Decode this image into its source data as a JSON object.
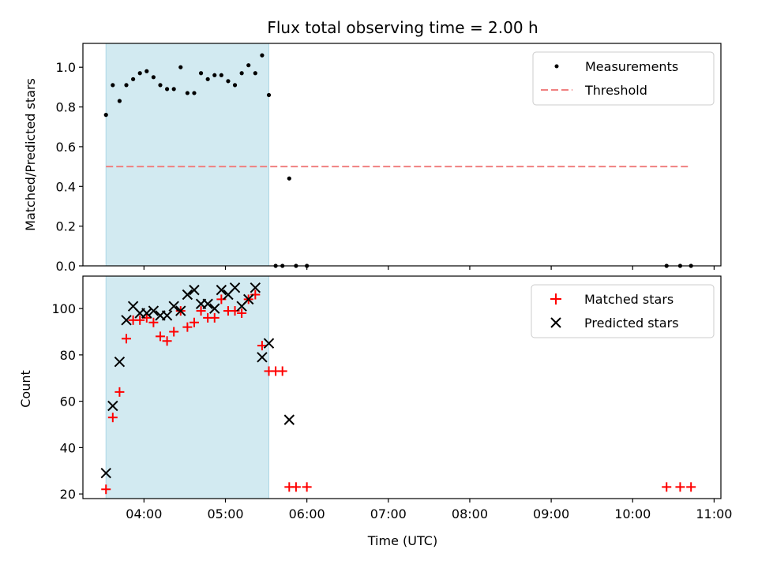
{
  "chart_data": {
    "type": "scatter",
    "title": "Flux total observing time = 2.00 h",
    "xlabel": "Time (UTC)",
    "x_ticks": [
      "04:00",
      "05:00",
      "06:00",
      "07:00",
      "08:00",
      "09:00",
      "10:00",
      "11:00"
    ],
    "xlim": [
      "03:15",
      "11:05"
    ],
    "shaded_region": {
      "x_start": "03:32",
      "x_end": "05:32",
      "color": "#add8e6"
    },
    "colors": {
      "measurements": "#000000",
      "threshold": "#f08080",
      "matched": "#ff0000",
      "predicted": "#000000",
      "shade": "#add8e6"
    },
    "panels": [
      {
        "ylabel": "Matched/Predicted stars",
        "ylim": [
          0,
          1.12
        ],
        "y_ticks": [
          "0.0",
          "0.2",
          "0.4",
          "0.6",
          "0.8",
          "1.0"
        ],
        "legend": {
          "position": "top-right",
          "entries": [
            "Measurements",
            "Threshold"
          ]
        },
        "series": [
          {
            "name": "Measurements",
            "kind": "dot",
            "points": [
              [
                "03:32",
                0.76
              ],
              [
                "03:37",
                0.91
              ],
              [
                "03:42",
                0.83
              ],
              [
                "03:47",
                0.91
              ],
              [
                "03:52",
                0.94
              ],
              [
                "03:57",
                0.97
              ],
              [
                "04:02",
                0.98
              ],
              [
                "04:07",
                0.95
              ],
              [
                "04:12",
                0.91
              ],
              [
                "04:17",
                0.89
              ],
              [
                "04:22",
                0.89
              ],
              [
                "04:27",
                1.0
              ],
              [
                "04:32",
                0.87
              ],
              [
                "04:37",
                0.87
              ],
              [
                "04:42",
                0.97
              ],
              [
                "04:47",
                0.94
              ],
              [
                "04:52",
                0.96
              ],
              [
                "04:57",
                0.96
              ],
              [
                "05:02",
                0.93
              ],
              [
                "05:07",
                0.91
              ],
              [
                "05:12",
                0.97
              ],
              [
                "05:17",
                1.01
              ],
              [
                "05:22",
                0.97
              ],
              [
                "05:27",
                1.06
              ],
              [
                "05:32",
                0.86
              ],
              [
                "05:37",
                0.0
              ],
              [
                "05:42",
                0.0
              ],
              [
                "05:47",
                0.44
              ],
              [
                "05:52",
                0.0
              ],
              [
                "06:00",
                0.0
              ],
              [
                "10:25",
                0.0
              ],
              [
                "10:35",
                0.0
              ],
              [
                "10:43",
                0.0
              ]
            ]
          },
          {
            "name": "Threshold",
            "kind": "dashed-line",
            "points": [
              [
                "03:32",
                0.5
              ],
              [
                "10:43",
                0.5
              ]
            ]
          }
        ]
      },
      {
        "ylabel": "Count",
        "ylim": [
          18,
          114
        ],
        "y_ticks": [
          "20",
          "40",
          "60",
          "80",
          "100"
        ],
        "legend": {
          "position": "top-right",
          "entries": [
            "Matched stars",
            "Predicted stars"
          ]
        },
        "series": [
          {
            "name": "Matched stars",
            "kind": "plus",
            "points": [
              [
                "03:32",
                22
              ],
              [
                "03:37",
                53
              ],
              [
                "03:42",
                64
              ],
              [
                "03:47",
                87
              ],
              [
                "03:52",
                95
              ],
              [
                "03:57",
                95
              ],
              [
                "04:02",
                96
              ],
              [
                "04:07",
                94
              ],
              [
                "04:12",
                88
              ],
              [
                "04:17",
                86
              ],
              [
                "04:22",
                90
              ],
              [
                "04:27",
                99
              ],
              [
                "04:32",
                92
              ],
              [
                "04:37",
                94
              ],
              [
                "04:42",
                99
              ],
              [
                "04:47",
                96
              ],
              [
                "04:52",
                96
              ],
              [
                "04:57",
                104
              ],
              [
                "05:02",
                99
              ],
              [
                "05:07",
                99
              ],
              [
                "05:12",
                98
              ],
              [
                "05:17",
                104
              ],
              [
                "05:22",
                106
              ],
              [
                "05:27",
                84
              ],
              [
                "05:32",
                73
              ],
              [
                "05:37",
                73
              ],
              [
                "05:42",
                73
              ],
              [
                "05:47",
                23
              ],
              [
                "05:52",
                23
              ],
              [
                "06:00",
                23
              ],
              [
                "10:25",
                23
              ],
              [
                "10:35",
                23
              ],
              [
                "10:43",
                23
              ]
            ]
          },
          {
            "name": "Predicted stars",
            "kind": "cross",
            "points": [
              [
                "03:32",
                29
              ],
              [
                "03:37",
                58
              ],
              [
                "03:42",
                77
              ],
              [
                "03:47",
                95
              ],
              [
                "03:52",
                101
              ],
              [
                "03:57",
                98
              ],
              [
                "04:02",
                98
              ],
              [
                "04:07",
                99
              ],
              [
                "04:12",
                97
              ],
              [
                "04:17",
                97
              ],
              [
                "04:22",
                101
              ],
              [
                "04:27",
                99
              ],
              [
                "04:32",
                106
              ],
              [
                "04:37",
                108
              ],
              [
                "04:42",
                102
              ],
              [
                "04:47",
                102
              ],
              [
                "04:52",
                100
              ],
              [
                "04:57",
                108
              ],
              [
                "05:02",
                106
              ],
              [
                "05:07",
                109
              ],
              [
                "05:12",
                101
              ],
              [
                "05:17",
                104
              ],
              [
                "05:22",
                109
              ],
              [
                "05:27",
                79
              ],
              [
                "05:32",
                85
              ],
              [
                "05:47",
                52
              ]
            ]
          }
        ]
      }
    ]
  }
}
